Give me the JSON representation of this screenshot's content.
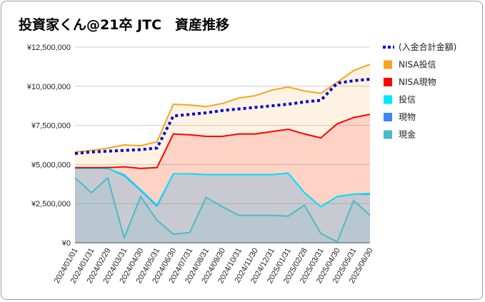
{
  "title": "投資家くん@21卒 JTC　資産推移",
  "chart_data": {
    "type": "area",
    "title": "投資家くん@21卒 JTC　資産推移",
    "xlabel": "",
    "ylabel": "",
    "ylim": [
      0,
      12500000
    ],
    "y_ticks": [
      "¥0",
      "¥2,500,000",
      "¥5,000,000",
      "¥7,500,000",
      "¥10,000,000",
      "¥12,500,000"
    ],
    "grid": true,
    "legend_position": "right",
    "x": [
      "2024/01/01",
      "2024/01/31",
      "2024/02/29",
      "2024/03/31",
      "2024/04/30",
      "2024/05/31",
      "2024/06/30",
      "2024/07/31",
      "2024/08/31",
      "2024/09/30",
      "2024/10/31",
      "2024/11/30",
      "2024/12/31",
      "2025/01/31",
      "2025/02/28",
      "2025/03/31",
      "2025/04/30",
      "2025/05/31",
      "2025/06/30"
    ],
    "x_positions": [
      0,
      1,
      2,
      3,
      4,
      5,
      6,
      7,
      8,
      9,
      10,
      11,
      12,
      13,
      14,
      15,
      16,
      17,
      18
    ],
    "series": [
      {
        "name": "NISA投信",
        "color": "#f5a623",
        "style": "area-line",
        "values": [
          5800000,
          5900000,
          6050000,
          6250000,
          6200000,
          6450000,
          8850000,
          8800000,
          8700000,
          8900000,
          9250000,
          9400000,
          9750000,
          9950000,
          9700000,
          9550000,
          10250000,
          11000000,
          11400000
        ]
      },
      {
        "name": "NISA現物",
        "color": "#ff0000",
        "style": "area-line",
        "values": [
          4800000,
          4800000,
          4800000,
          4850000,
          4750000,
          4800000,
          6950000,
          6900000,
          6800000,
          6800000,
          6950000,
          6950000,
          7100000,
          7250000,
          6950000,
          6700000,
          7600000,
          8000000,
          8200000
        ]
      },
      {
        "name": "投信",
        "color": "#00e5ff",
        "style": "area-line",
        "values": [
          4750000,
          4750000,
          4750000,
          4350000,
          3400000,
          2400000,
          4400000,
          4400000,
          4350000,
          4350000,
          4350000,
          4350000,
          4350000,
          4450000,
          3200000,
          2300000,
          2950000,
          3100000,
          3150000
        ]
      },
      {
        "name": "現物",
        "color": "#4285f4",
        "style": "area-line",
        "values": [
          4750000,
          4750000,
          4750000,
          4300000,
          3350000,
          2350000,
          4400000,
          4400000,
          4350000,
          4350000,
          4350000,
          4350000,
          4350000,
          4450000,
          3200000,
          2300000,
          2950000,
          3100000,
          3100000
        ]
      },
      {
        "name": "現金",
        "color": "#46bdc6",
        "style": "area-line",
        "values": [
          4150000,
          3200000,
          4150000,
          300000,
          2950000,
          1450000,
          550000,
          650000,
          2900000,
          2300000,
          1750000,
          1750000,
          1750000,
          1700000,
          2400000,
          600000,
          50000,
          2700000,
          1750000
        ]
      },
      {
        "name": "(入金合計金額)",
        "color": "#0000cc",
        "style": "dotted-line",
        "values": [
          5700000,
          5800000,
          5850000,
          5900000,
          5950000,
          6050000,
          8100000,
          8200000,
          8300000,
          8450000,
          8550000,
          8650000,
          8750000,
          8850000,
          9000000,
          9100000,
          10200000,
          10350000,
          10450000
        ]
      }
    ],
    "legend_order": [
      "(入金合計金額)",
      "NISA投信",
      "NISA現物",
      "投信",
      "現物",
      "現金"
    ]
  }
}
